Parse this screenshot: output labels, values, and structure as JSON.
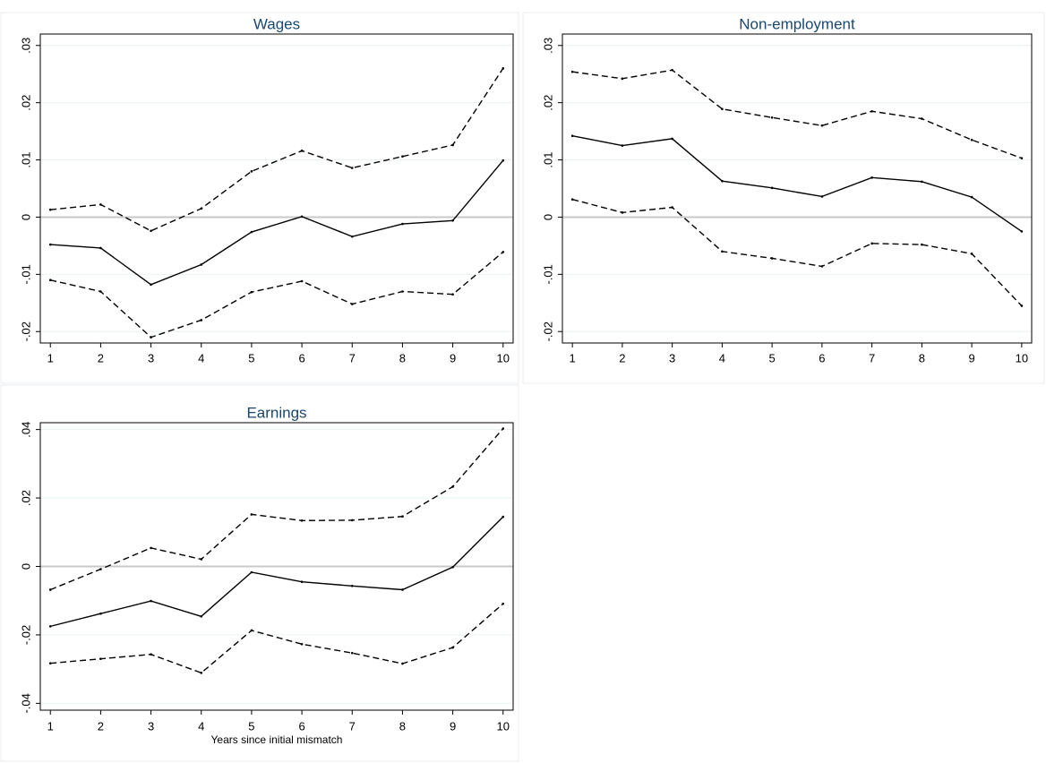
{
  "chart_data": [
    {
      "type": "line",
      "title": "Wages",
      "x": [
        1,
        2,
        3,
        4,
        5,
        6,
        7,
        8,
        9,
        10
      ],
      "xlim": [
        0.8,
        10.2
      ],
      "xticks": [
        1,
        2,
        3,
        4,
        5,
        6,
        7,
        8,
        9,
        10
      ],
      "ylim": [
        -0.022,
        0.032
      ],
      "yticks": [
        {
          "value": -0.02,
          "label": "-.02"
        },
        {
          "value": -0.01,
          "label": "-.01"
        },
        0,
        {
          "value": 0.01,
          "label": ".01"
        },
        {
          "value": 0.02,
          "label": ".02"
        },
        {
          "value": 0.03,
          "label": ".03"
        }
      ],
      "reference_line": 0,
      "series": [
        {
          "color": "#000000",
          "line_style": "solid",
          "values": [
            -0.0048,
            -0.0054,
            -0.0118,
            -0.0083,
            -0.0026,
            0.0001,
            -0.0034,
            -0.0012,
            -0.0006,
            0.0099
          ]
        },
        {
          "color": "#000000",
          "line_style": "dashed",
          "values": [
            0.0013,
            0.0022,
            -0.0024,
            0.0015,
            0.008,
            0.0116,
            0.0086,
            0.0106,
            0.0126,
            0.026
          ]
        },
        {
          "color": "#000000",
          "line_style": "dashed",
          "values": [
            -0.011,
            -0.013,
            -0.021,
            -0.018,
            -0.0131,
            -0.0112,
            -0.0152,
            -0.013,
            -0.0135,
            -0.0061
          ]
        }
      ]
    },
    {
      "type": "line",
      "title": "Non-employment",
      "x": [
        1,
        2,
        3,
        4,
        5,
        6,
        7,
        8,
        9,
        10
      ],
      "xlim": [
        0.8,
        10.2
      ],
      "xticks": [
        1,
        2,
        3,
        4,
        5,
        6,
        7,
        8,
        9,
        10
      ],
      "ylim": [
        -0.022,
        0.032
      ],
      "yticks": [
        {
          "value": -0.02,
          "label": "-.02"
        },
        {
          "value": -0.01,
          "label": "-.01"
        },
        0,
        {
          "value": 0.01,
          "label": ".01"
        },
        {
          "value": 0.02,
          "label": ".02"
        },
        {
          "value": 0.03,
          "label": ".03"
        }
      ],
      "reference_line": 0,
      "series": [
        {
          "color": "#000000",
          "line_style": "solid",
          "values": [
            0.0142,
            0.0125,
            0.0137,
            0.0063,
            0.0051,
            0.0036,
            0.0069,
            0.0062,
            0.0035,
            -0.0025
          ]
        },
        {
          "color": "#000000",
          "line_style": "dashed",
          "values": [
            0.0254,
            0.0242,
            0.0257,
            0.0189,
            0.0174,
            0.016,
            0.0185,
            0.0172,
            0.0135,
            0.0103
          ]
        },
        {
          "color": "#000000",
          "line_style": "dashed",
          "values": [
            0.0031,
            0.0008,
            0.0017,
            -0.006,
            -0.0072,
            -0.0086,
            -0.0046,
            -0.0048,
            -0.0064,
            -0.0155
          ]
        }
      ]
    },
    {
      "type": "line",
      "title": "Earnings",
      "x_label": "Years since initial mismatch",
      "x": [
        1,
        2,
        3,
        4,
        5,
        6,
        7,
        8,
        9,
        10
      ],
      "xlim": [
        0.8,
        10.2
      ],
      "xticks": [
        1,
        2,
        3,
        4,
        5,
        6,
        7,
        8,
        9,
        10
      ],
      "ylim": [
        -0.042,
        0.042
      ],
      "yticks": [
        {
          "value": -0.04,
          "label": "-.04"
        },
        {
          "value": -0.02,
          "label": "-.02"
        },
        0,
        {
          "value": 0.02,
          "label": ".02"
        },
        {
          "value": 0.04,
          "label": ".04"
        }
      ],
      "reference_line": 0,
      "series": [
        {
          "color": "#000000",
          "line_style": "solid",
          "values": [
            -0.0175,
            -0.0138,
            -0.0101,
            -0.0146,
            -0.0017,
            -0.0045,
            -0.0057,
            -0.0068,
            -0.0002,
            0.0145
          ]
        },
        {
          "color": "#000000",
          "line_style": "dashed",
          "values": [
            -0.0068,
            -0.0008,
            0.0054,
            0.0021,
            0.0152,
            0.0134,
            0.0135,
            0.0146,
            0.0233,
            0.0403
          ]
        },
        {
          "color": "#000000",
          "line_style": "dashed",
          "values": [
            -0.0283,
            -0.027,
            -0.0257,
            -0.0311,
            -0.0187,
            -0.0227,
            -0.0253,
            -0.0284,
            -0.0237,
            -0.0109
          ]
        }
      ]
    }
  ]
}
